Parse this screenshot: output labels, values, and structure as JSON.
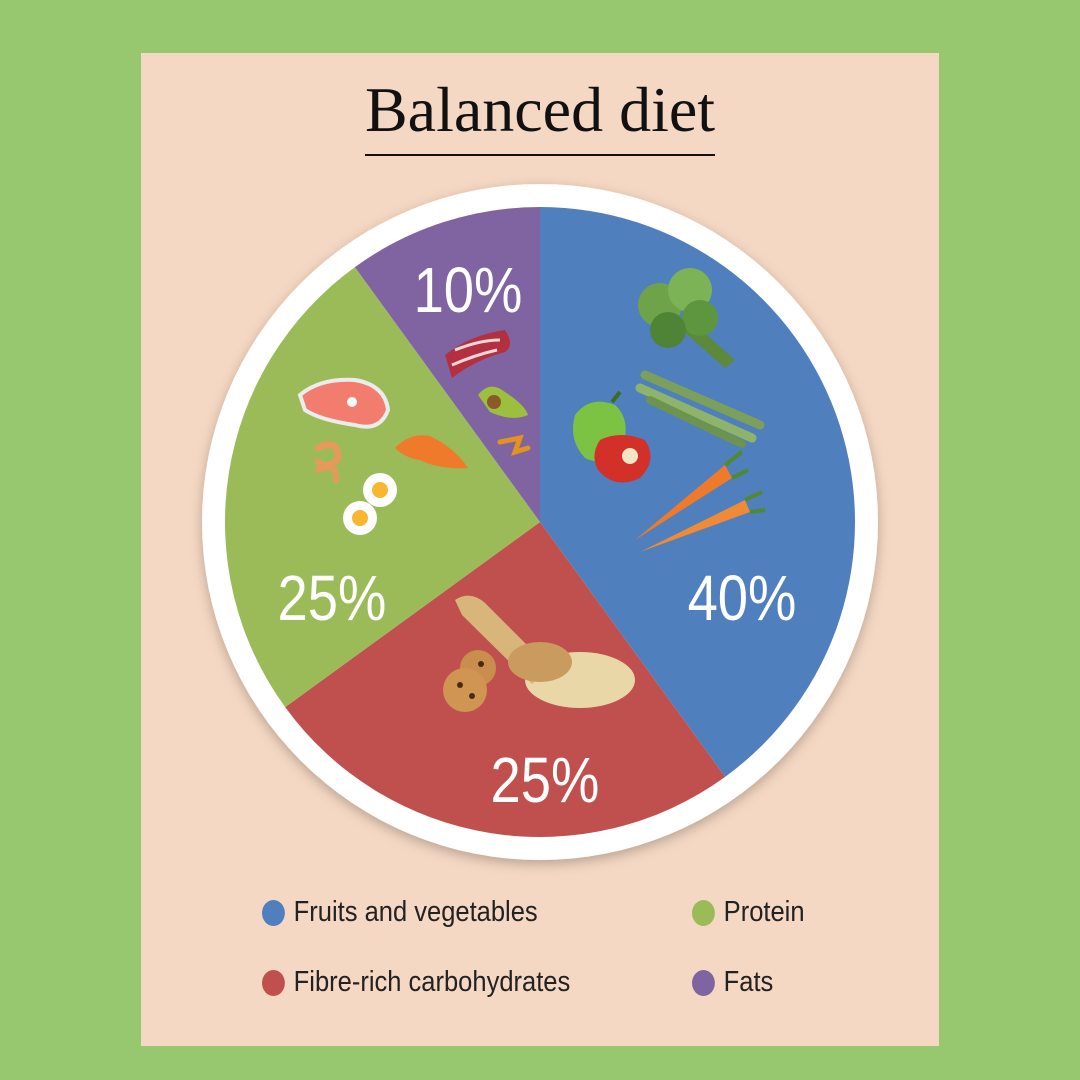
{
  "chart_data": {
    "type": "pie",
    "title": "Balanced diet",
    "start_angle_deg": 0,
    "series": [
      {
        "name": "Fruits and vegetables",
        "value": 40,
        "label": "40%",
        "color": "#4f7fbd"
      },
      {
        "name": "Fibre-rich carbohydrates",
        "value": 25,
        "label": "25%",
        "color": "#c0504d"
      },
      {
        "name": "Protein",
        "value": 25,
        "label": "25%",
        "color": "#9bbb59"
      },
      {
        "name": "Fats",
        "value": 10,
        "label": "10%",
        "color": "#8064a2"
      }
    ],
    "legend_position": "bottom",
    "food_icons": [
      "broccoli-icon",
      "asparagus-icon",
      "bell-pepper-icon",
      "carrot-icon",
      "grain-scoop-icon",
      "cookie-icon",
      "salmon-steak-icon",
      "shrimp-icon",
      "fried-egg-icon",
      "sweet-potato-icon",
      "bacon-icon",
      "avocado-icon",
      "turmeric-icon"
    ]
  },
  "colors": {
    "background": "#97c76e",
    "panel": "#f5d8c3",
    "plate_rim": "#ffffff"
  }
}
